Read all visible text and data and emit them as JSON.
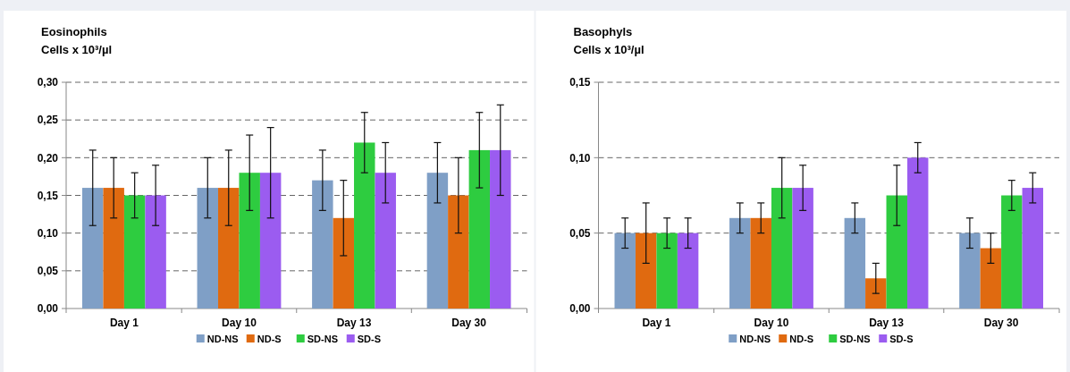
{
  "chart_data": [
    {
      "type": "bar",
      "title": "Eosinophils",
      "subtitle": "Cells x 10³/µl",
      "categories": [
        "Day 1",
        "Day 10",
        "Day 13",
        "Day 30"
      ],
      "series": [
        {
          "name": "ND-NS",
          "color": "#7f9fc6",
          "values": [
            0.16,
            0.16,
            0.17,
            0.18
          ],
          "errors": [
            0.05,
            0.04,
            0.04,
            0.04
          ]
        },
        {
          "name": "ND-S",
          "color": "#e06a10",
          "values": [
            0.16,
            0.16,
            0.12,
            0.15
          ],
          "errors": [
            0.04,
            0.05,
            0.05,
            0.05
          ]
        },
        {
          "name": "SD-NS",
          "color": "#2ecc40",
          "values": [
            0.15,
            0.18,
            0.22,
            0.21
          ],
          "errors": [
            0.03,
            0.05,
            0.04,
            0.05
          ]
        },
        {
          "name": "SD-S",
          "color": "#9b5cf0",
          "values": [
            0.15,
            0.18,
            0.18,
            0.21
          ],
          "errors": [
            0.04,
            0.06,
            0.04,
            0.06
          ]
        }
      ],
      "ylim": [
        0,
        0.3
      ],
      "yticks": [
        {
          "value": 0,
          "label": "0,00"
        },
        {
          "value": 0.05,
          "label": "0,05"
        },
        {
          "value": 0.1,
          "label": "0,10"
        },
        {
          "value": 0.15,
          "label": "0,15"
        },
        {
          "value": 0.2,
          "label": "0,20"
        },
        {
          "value": 0.25,
          "label": "0,25"
        },
        {
          "value": 0.3,
          "label": "0,30"
        }
      ],
      "grid": "y",
      "legend": "bottom"
    },
    {
      "type": "bar",
      "title": "Basophyls",
      "subtitle": "Cells x 10³/µl",
      "categories": [
        "Day 1",
        "Day 10",
        "Day 13",
        "Day 30"
      ],
      "series": [
        {
          "name": "ND-NS",
          "color": "#7f9fc6",
          "values": [
            0.05,
            0.06,
            0.06,
            0.05
          ],
          "errors": [
            0.01,
            0.01,
            0.01,
            0.01
          ]
        },
        {
          "name": "ND-S",
          "color": "#e06a10",
          "values": [
            0.05,
            0.06,
            0.02,
            0.04
          ],
          "errors": [
            0.02,
            0.01,
            0.01,
            0.01
          ]
        },
        {
          "name": "SD-NS",
          "color": "#2ecc40",
          "values": [
            0.05,
            0.08,
            0.075,
            0.075
          ],
          "errors": [
            0.01,
            0.02,
            0.02,
            0.01
          ]
        },
        {
          "name": "SD-S",
          "color": "#9b5cf0",
          "values": [
            0.05,
            0.08,
            0.1,
            0.08
          ],
          "errors": [
            0.01,
            0.015,
            0.01,
            0.01
          ]
        }
      ],
      "ylim": [
        0,
        0.15
      ],
      "yticks": [
        {
          "value": 0,
          "label": "0,00"
        },
        {
          "value": 0.05,
          "label": "0,05"
        },
        {
          "value": 0.1,
          "label": "0,10"
        },
        {
          "value": 0.15,
          "label": "0,15"
        }
      ],
      "grid": "y",
      "legend": "bottom"
    }
  ]
}
